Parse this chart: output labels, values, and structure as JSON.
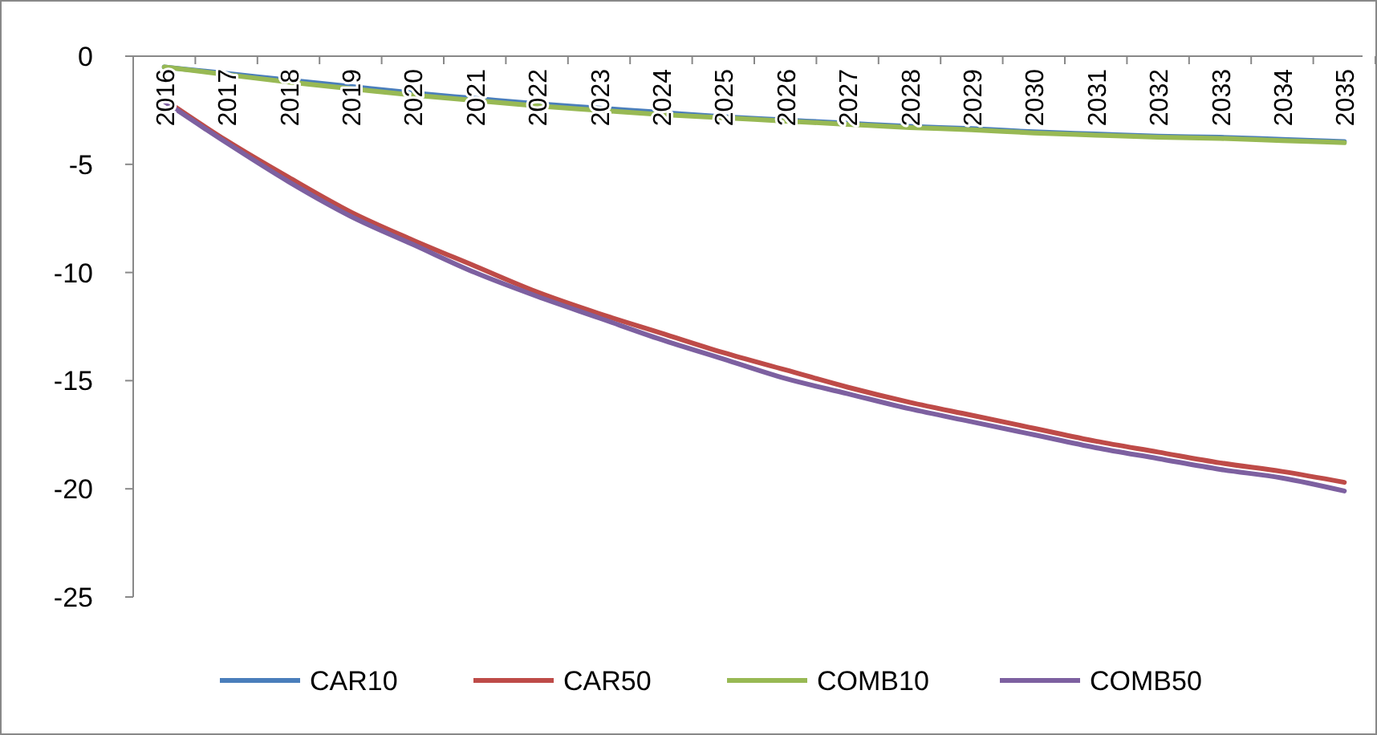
{
  "chart_data": {
    "type": "line",
    "categories": [
      "2016",
      "2017",
      "2018",
      "2019",
      "2020",
      "2021",
      "2022",
      "2023",
      "2024",
      "2025",
      "2026",
      "2027",
      "2028",
      "2029",
      "2030",
      "2031",
      "2032",
      "2033",
      "2034",
      "2035"
    ],
    "series": [
      {
        "name": "CAR10",
        "color": "#4a7ebb",
        "values": [
          -0.5,
          -0.8,
          -1.1,
          -1.4,
          -1.7,
          -1.95,
          -2.2,
          -2.4,
          -2.6,
          -2.8,
          -2.95,
          -3.1,
          -3.25,
          -3.35,
          -3.5,
          -3.6,
          -3.7,
          -3.75,
          -3.85,
          -3.95
        ]
      },
      {
        "name": "CAR50",
        "color": "#be4b48",
        "values": [
          -2,
          -3.9,
          -5.6,
          -7.2,
          -8.5,
          -9.7,
          -10.9,
          -11.9,
          -12.8,
          -13.7,
          -14.5,
          -15.3,
          -16,
          -16.6,
          -17.2,
          -17.8,
          -18.3,
          -18.8,
          -19.2,
          -19.7
        ]
      },
      {
        "name": "COMB10",
        "color": "#98b954",
        "values": [
          -0.5,
          -0.85,
          -1.2,
          -1.5,
          -1.8,
          -2.05,
          -2.3,
          -2.5,
          -2.7,
          -2.85,
          -3,
          -3.15,
          -3.3,
          -3.4,
          -3.55,
          -3.65,
          -3.75,
          -3.8,
          -3.9,
          -4
        ]
      },
      {
        "name": "COMB50",
        "color": "#7d60a0",
        "values": [
          -2.1,
          -4,
          -5.8,
          -7.4,
          -8.7,
          -10,
          -11.1,
          -12.1,
          -13.1,
          -14,
          -14.9,
          -15.6,
          -16.3,
          -16.9,
          -17.5,
          -18.1,
          -18.6,
          -19.1,
          -19.5,
          -20.1
        ]
      }
    ],
    "ylim": [
      -25,
      0
    ],
    "yticks": [
      -25,
      -20,
      -15,
      -10,
      -5,
      0
    ],
    "grid": false,
    "legend": "bottom",
    "marker": "none",
    "line_style": "solid"
  }
}
